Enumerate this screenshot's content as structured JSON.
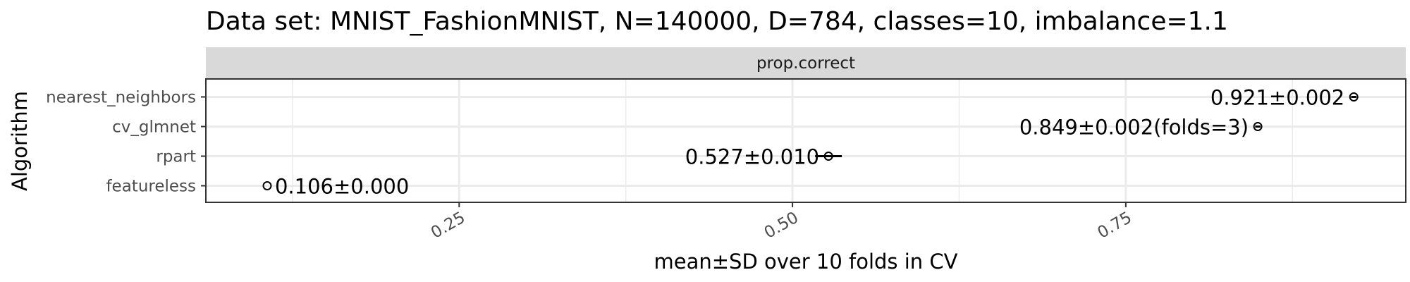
{
  "chart_data": {
    "type": "scatter",
    "title": "Data set: MNIST_FashionMNIST, N=140000, D=784, classes=10, imbalance=1.1",
    "facet_label": "prop.correct",
    "xlabel": "mean±SD over 10 folds in CV",
    "ylabel": "Algorithm",
    "xlim": [
      0.06,
      0.96
    ],
    "x_ticks": [
      0.25,
      0.5,
      0.75
    ],
    "x_tick_labels": [
      "0.25",
      "0.50",
      "0.75"
    ],
    "grid": true,
    "categories": [
      "nearest_neighbors",
      "cv_glmnet",
      "rpart",
      "featureless"
    ],
    "series": [
      {
        "points": [
          {
            "algorithm": "nearest_neighbors",
            "mean": 0.921,
            "sd": 0.002,
            "label": "0.921±0.002"
          },
          {
            "algorithm": "cv_glmnet",
            "mean": 0.849,
            "sd": 0.002,
            "label": "0.849±0.002(folds=3)"
          },
          {
            "algorithm": "rpart",
            "mean": 0.527,
            "sd": 0.01,
            "label": "0.527±0.010"
          },
          {
            "algorithm": "featureless",
            "mean": 0.106,
            "sd": 0.0,
            "label": "0.106±0.000"
          }
        ]
      }
    ],
    "colors": {
      "strip_fill": "#d9d9d9",
      "grid": "#ebebeb",
      "border": "#333333",
      "point": "#000000"
    }
  }
}
